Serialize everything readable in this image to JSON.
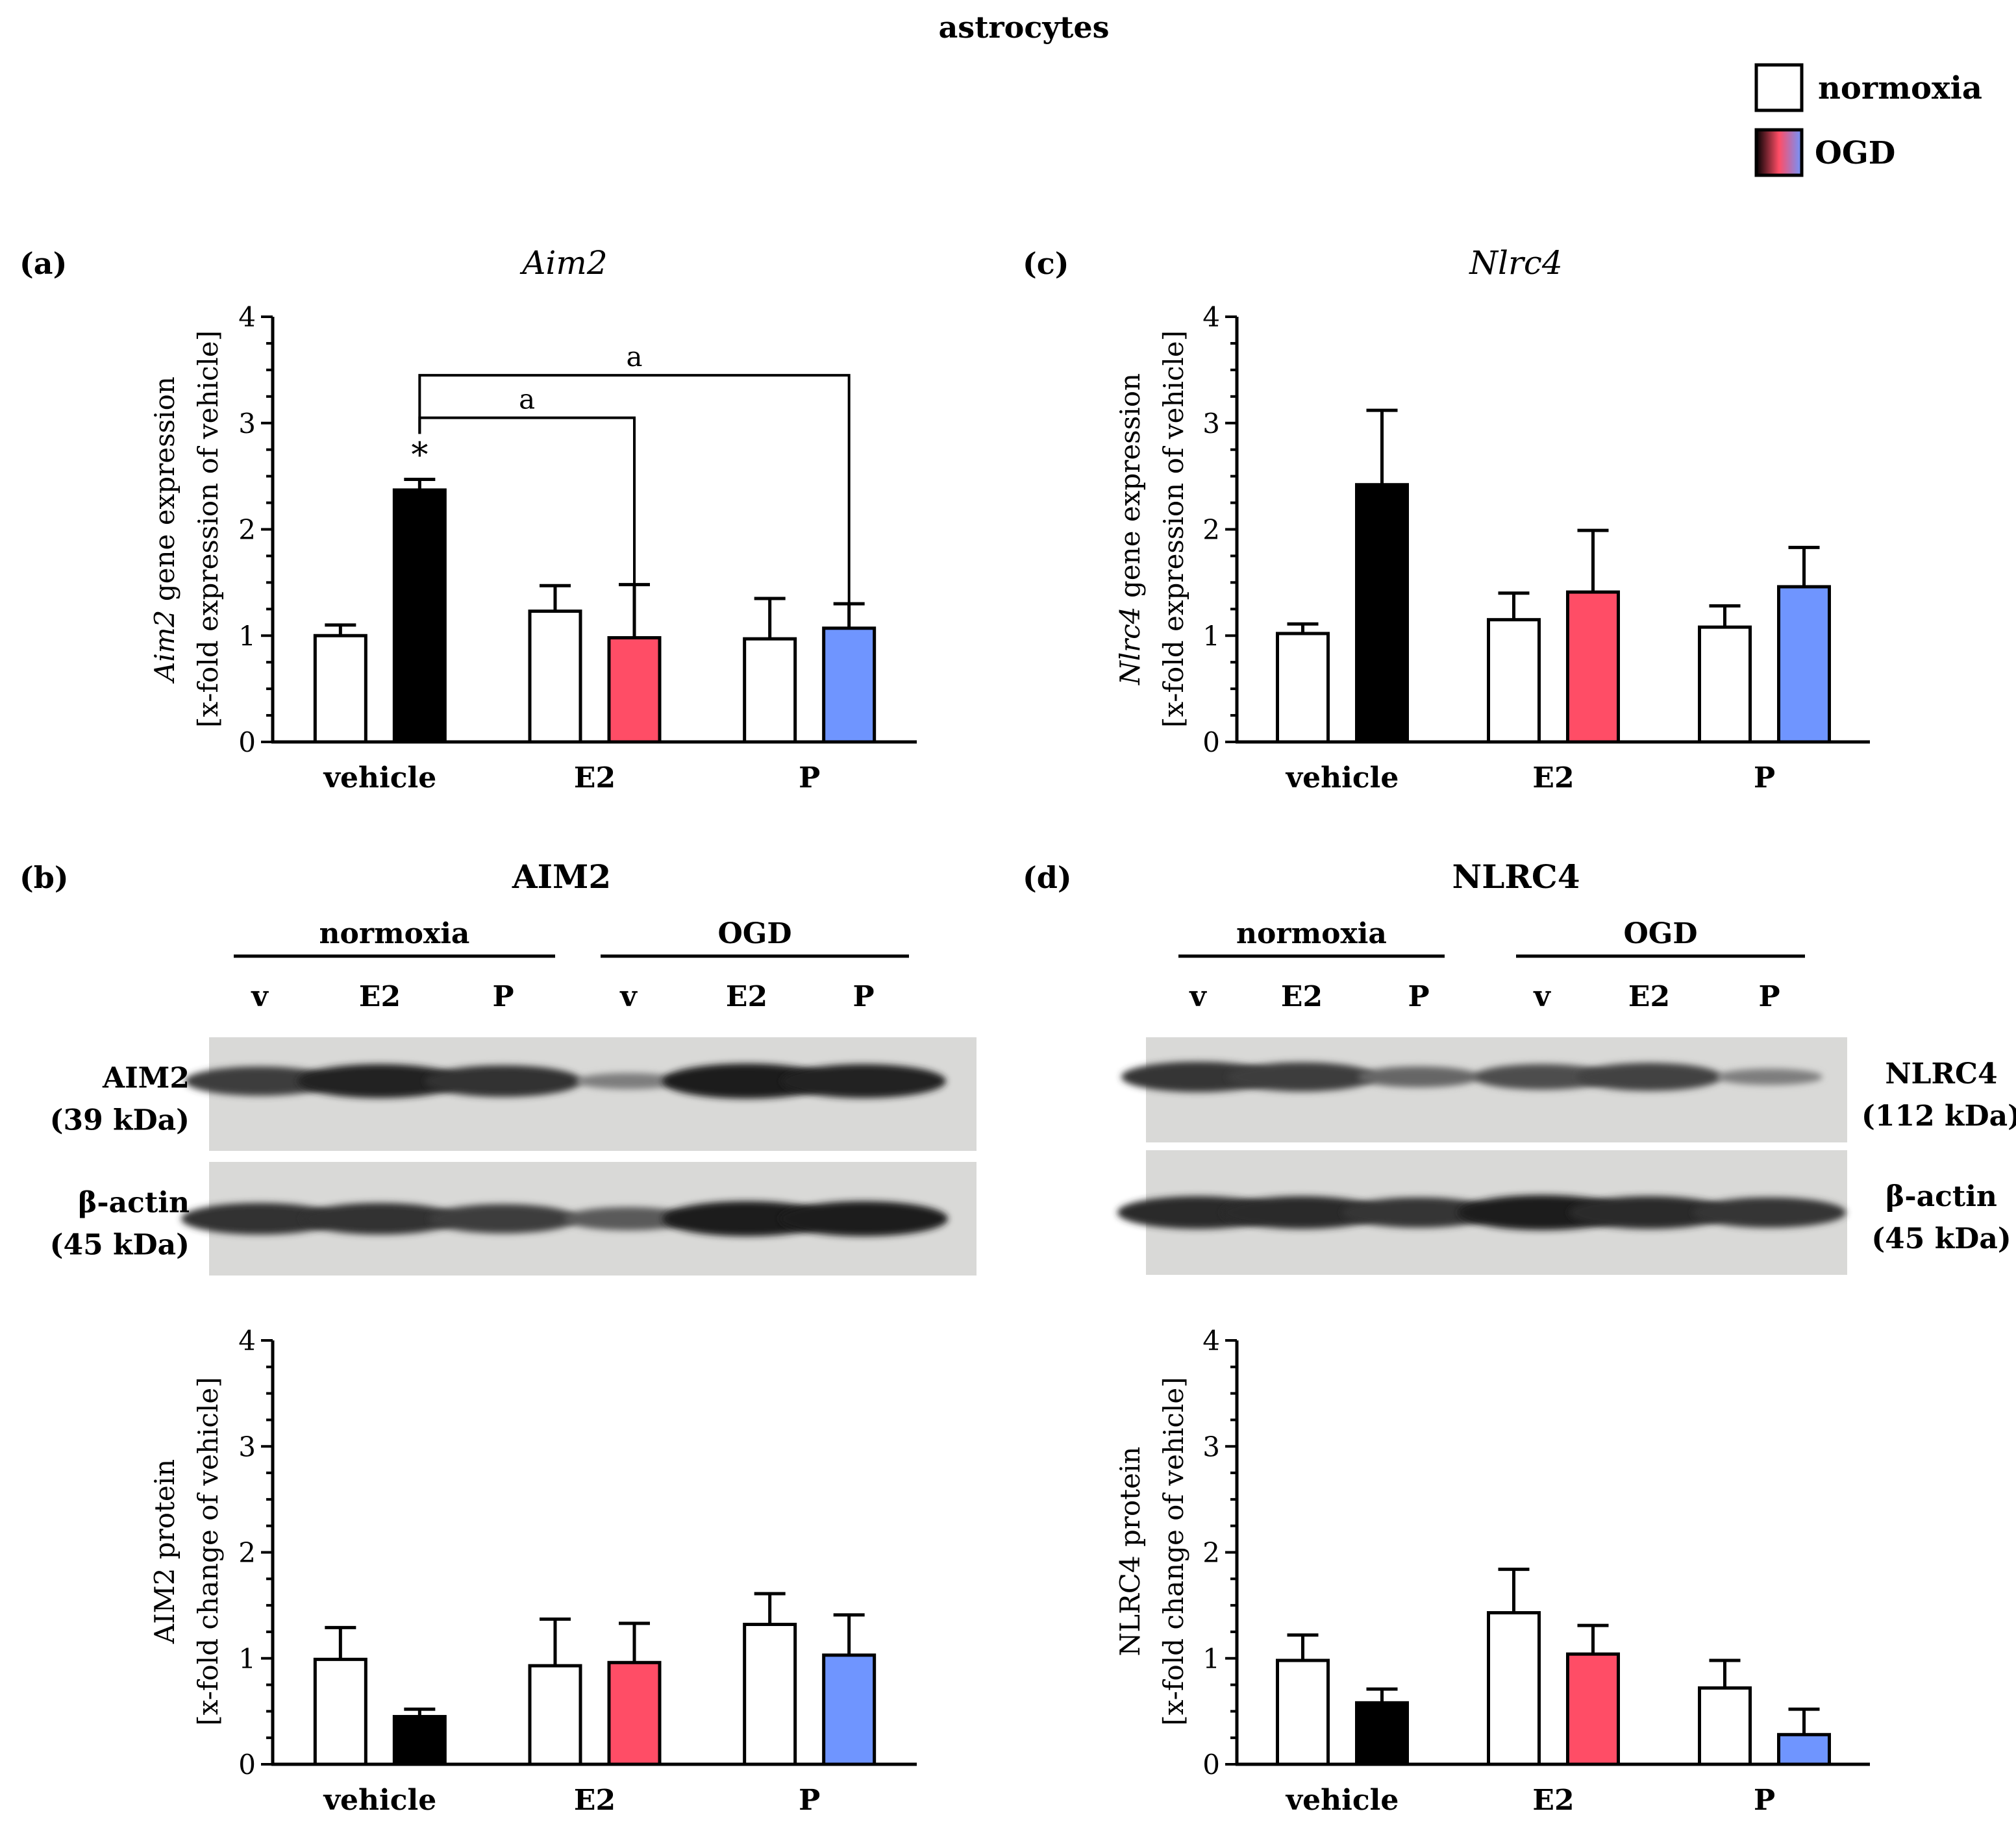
{
  "figure_title": "astrocytes",
  "legend": [
    {
      "label": "normoxia",
      "swatch": "white"
    },
    {
      "label": "OGD",
      "swatch": "gradient"
    }
  ],
  "colors": {
    "vehicle_ogd": "#000000",
    "e2_ogd": "#ff4d66",
    "p_ogd": "#6f95ff",
    "normoxia": "#ffffff"
  },
  "chart_data": [
    {
      "panel": "(a)",
      "type": "bar",
      "title": "Aim2",
      "ylabel_italic": "Aim2",
      "ylabel_rest": " gene expression",
      "ylabel2": "[x-fold expression of vehicle]",
      "categories": [
        "vehicle",
        "E2",
        "P"
      ],
      "ylim": [
        0,
        4
      ],
      "yticks": [
        "0",
        "1",
        "2",
        "3",
        "4"
      ],
      "series": [
        {
          "name": "normoxia",
          "values": [
            1.0,
            1.23,
            0.97
          ],
          "errors": [
            0.1,
            0.24,
            0.38
          ]
        },
        {
          "name": "OGD",
          "values": [
            2.37,
            0.98,
            1.07
          ],
          "errors": [
            0.1,
            0.5,
            0.23
          ]
        }
      ],
      "annotations": [
        {
          "text": "*",
          "category": "vehicle",
          "series": "OGD"
        },
        {
          "text": "a",
          "from": "vehicle OGD",
          "to": "E2 OGD"
        },
        {
          "text": "a",
          "from": "vehicle OGD",
          "to": "P OGD"
        }
      ]
    },
    {
      "panel": "(c)",
      "type": "bar",
      "title": "Nlrc4",
      "ylabel_italic": "Nlrc4",
      "ylabel_rest": " gene expression",
      "ylabel2": "[x-fold expression of vehicle]",
      "categories": [
        "vehicle",
        "E2",
        "P"
      ],
      "ylim": [
        0,
        4
      ],
      "yticks": [
        "0",
        "1",
        "2",
        "3",
        "4"
      ],
      "series": [
        {
          "name": "normoxia",
          "values": [
            1.02,
            1.15,
            1.08
          ],
          "errors": [
            0.09,
            0.25,
            0.2
          ]
        },
        {
          "name": "OGD",
          "values": [
            2.42,
            1.41,
            1.46
          ],
          "errors": [
            0.7,
            0.58,
            0.37
          ]
        }
      ]
    },
    {
      "panel": "(b)",
      "type": "bar",
      "title": "AIM2",
      "ylabel_italic": "",
      "ylabel_rest": "AIM2 protein",
      "ylabel2": "[x-fold change of vehicle]",
      "categories": [
        "vehicle",
        "E2",
        "P"
      ],
      "ylim": [
        0,
        4
      ],
      "yticks": [
        "0",
        "1",
        "2",
        "3",
        "4"
      ],
      "series": [
        {
          "name": "normoxia",
          "values": [
            0.99,
            0.93,
            1.32
          ],
          "errors": [
            0.3,
            0.44,
            0.29
          ]
        },
        {
          "name": "OGD",
          "values": [
            0.45,
            0.96,
            1.03
          ],
          "errors": [
            0.07,
            0.37,
            0.38
          ]
        }
      ]
    },
    {
      "panel": "(d)",
      "type": "bar",
      "title": "NLRC4",
      "ylabel_italic": "",
      "ylabel_rest": "NLRC4 protein",
      "ylabel2": "[x-fold change of vehicle]",
      "categories": [
        "vehicle",
        "E2",
        "P"
      ],
      "ylim": [
        0,
        4
      ],
      "yticks": [
        "0",
        "1",
        "2",
        "3",
        "4"
      ],
      "series": [
        {
          "name": "normoxia",
          "values": [
            0.98,
            1.43,
            0.72
          ],
          "errors": [
            0.24,
            0.41,
            0.26
          ]
        },
        {
          "name": "OGD",
          "values": [
            0.58,
            1.04,
            0.28
          ],
          "errors": [
            0.13,
            0.27,
            0.24
          ]
        }
      ]
    }
  ],
  "blots": [
    {
      "panel": "(b)",
      "title": "AIM2",
      "groups": [
        "normoxia",
        "OGD"
      ],
      "lanes": [
        "v",
        "E2",
        "P",
        "v",
        "E2",
        "P"
      ],
      "rows": [
        {
          "label": "AIM2",
          "size": "(39 kDa)",
          "intensities": [
            0.75,
            0.95,
            0.85,
            0.2,
            1.0,
            0.95
          ]
        },
        {
          "label": "β-actin",
          "size": "(45 kDa)",
          "intensities": [
            0.85,
            0.85,
            0.75,
            0.5,
            1.0,
            1.0
          ]
        }
      ]
    },
    {
      "panel": "(d)",
      "title": "NLRC4",
      "groups": [
        "normoxia",
        "OGD"
      ],
      "lanes": [
        "v",
        "E2",
        "P",
        "v",
        "E2",
        "P"
      ],
      "rows": [
        {
          "label": "NLRC4",
          "size": "(112 kDa)",
          "intensities": [
            0.8,
            0.75,
            0.4,
            0.6,
            0.7,
            0.2
          ]
        },
        {
          "label": "β-actin",
          "size": "(45 kDa)",
          "intensities": [
            0.9,
            0.9,
            0.8,
            1.0,
            0.9,
            0.8
          ]
        }
      ]
    }
  ]
}
